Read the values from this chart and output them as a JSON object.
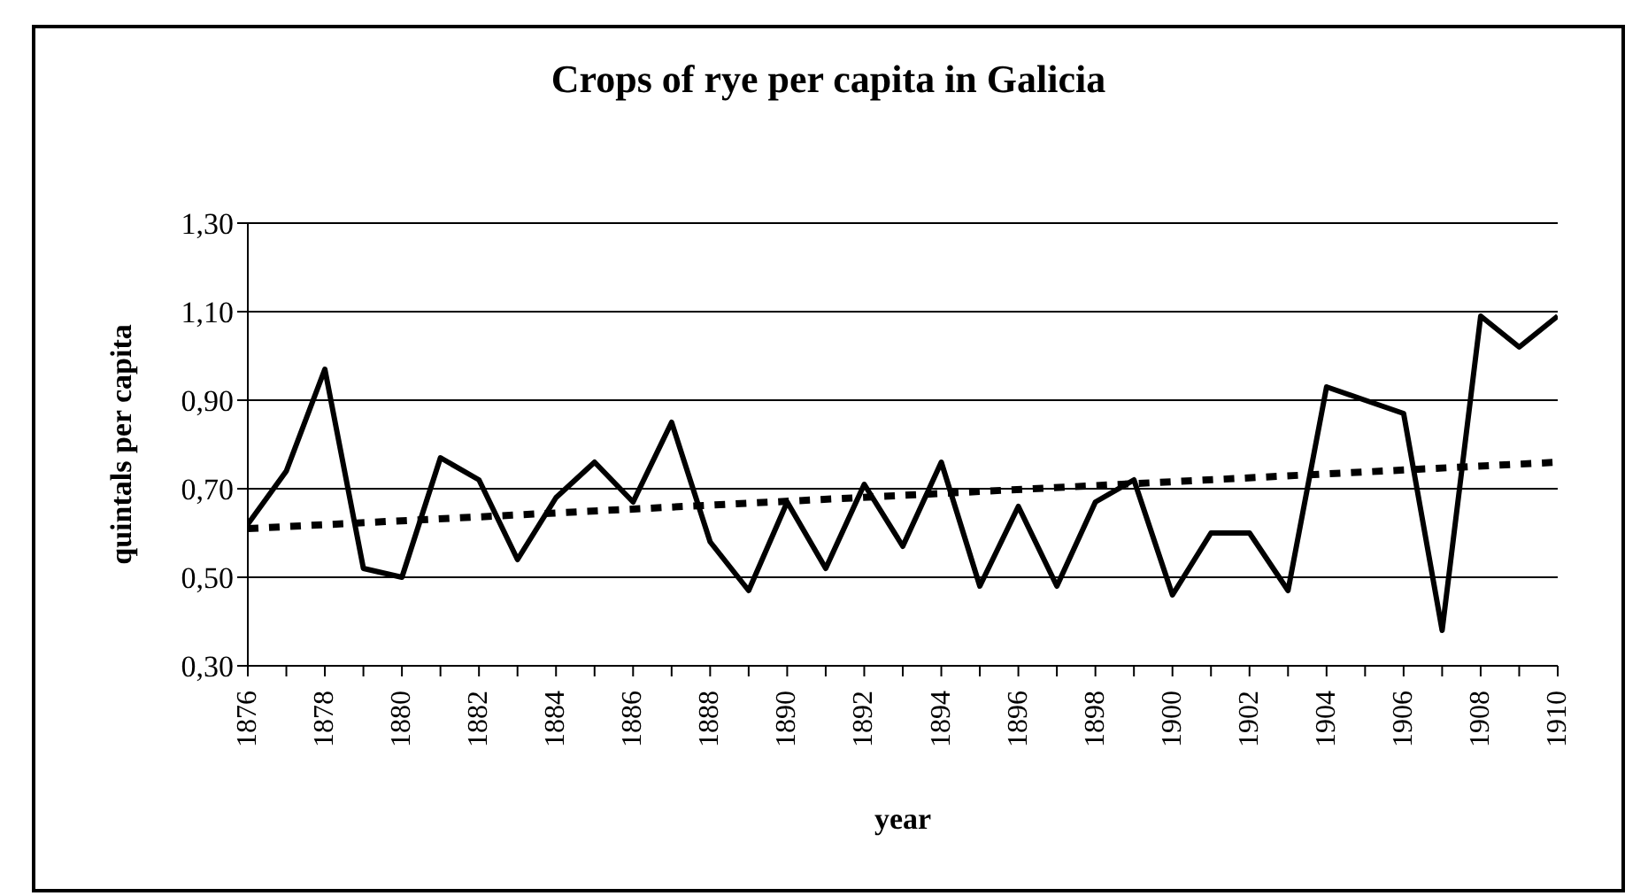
{
  "chart_data": {
    "type": "line",
    "title": "Crops of rye per capita in Galicia",
    "xlabel": "year",
    "ylabel": "quintals per capita",
    "x": [
      1876,
      1877,
      1878,
      1879,
      1880,
      1881,
      1882,
      1883,
      1884,
      1885,
      1886,
      1887,
      1888,
      1889,
      1890,
      1891,
      1892,
      1893,
      1894,
      1895,
      1896,
      1897,
      1898,
      1899,
      1900,
      1901,
      1902,
      1903,
      1904,
      1905,
      1906,
      1907,
      1908,
      1909,
      1910
    ],
    "series": [
      {
        "color": "#000000",
        "line_style": "solid",
        "values": [
          0.62,
          0.74,
          0.97,
          0.52,
          0.5,
          0.77,
          0.72,
          0.54,
          0.68,
          0.76,
          0.67,
          0.85,
          0.58,
          0.47,
          0.67,
          0.52,
          0.71,
          0.57,
          0.76,
          0.48,
          0.66,
          0.48,
          0.67,
          0.72,
          0.46,
          0.6,
          0.6,
          0.47,
          0.93,
          0.9,
          0.87,
          0.38,
          1.09,
          1.02,
          1.09
        ]
      },
      {
        "type": "line",
        "color": "#000000",
        "line_style": "dashed",
        "x": [
          1876,
          1910
        ],
        "values": [
          0.61,
          0.76
        ]
      }
    ],
    "xlim": [
      1876,
      1910
    ],
    "xticks": [
      1876,
      {
        "value": 1877,
        "label": null
      },
      1878,
      {
        "value": 1879,
        "label": null
      },
      1880,
      {
        "value": 1881,
        "label": null
      },
      1882,
      {
        "value": 1883,
        "label": null
      },
      1884,
      {
        "value": 1885,
        "label": null
      },
      1886,
      {
        "value": 1887,
        "label": null
      },
      1888,
      {
        "value": 1889,
        "label": null
      },
      1890,
      {
        "value": 1891,
        "label": null
      },
      1892,
      {
        "value": 1893,
        "label": null
      },
      1894,
      {
        "value": 1895,
        "label": null
      },
      1896,
      {
        "value": 1897,
        "label": null
      },
      1898,
      {
        "value": 1899,
        "label": null
      },
      1900,
      {
        "value": 1901,
        "label": null
      },
      1902,
      {
        "value": 1903,
        "label": null
      },
      1904,
      {
        "value": 1905,
        "label": null
      },
      1906,
      {
        "value": 1907,
        "label": null
      },
      1908,
      {
        "value": 1909,
        "label": null
      },
      1910
    ],
    "ylim": [
      0.3,
      1.3
    ],
    "yticks": [
      {
        "value": 0.3,
        "label": "0,30"
      },
      {
        "value": 0.5,
        "label": "0,50"
      },
      {
        "value": 0.7,
        "label": "0,70"
      },
      {
        "value": 0.9,
        "label": "0,90"
      },
      {
        "value": 1.1,
        "label": "1,10"
      },
      {
        "value": 1.3,
        "label": "1,30"
      }
    ],
    "grid": "y",
    "legend": false,
    "marker": "none"
  }
}
